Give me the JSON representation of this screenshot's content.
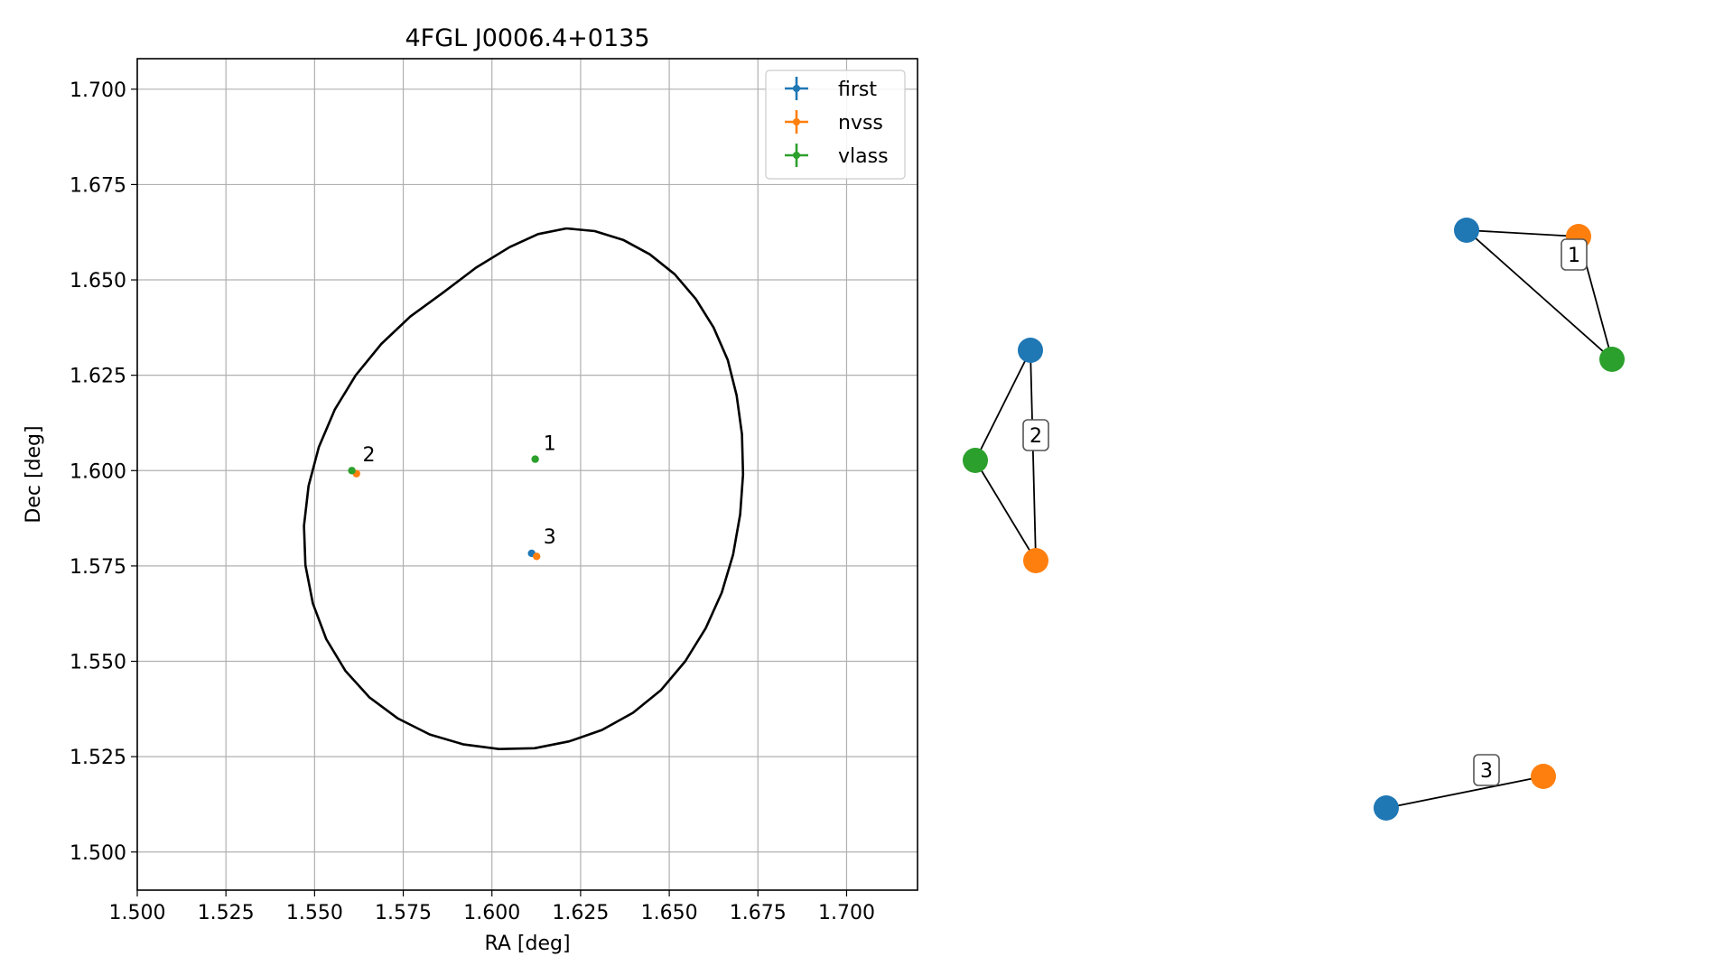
{
  "chart_data": [
    {
      "type": "scatter",
      "title": "4FGL J0006.4+0135",
      "xlabel": "RA [deg]",
      "ylabel": "Dec [deg]",
      "xlim": [
        1.5,
        1.72
      ],
      "ylim": [
        1.49,
        1.708
      ],
      "xticks": [
        "1.500",
        "1.525",
        "1.550",
        "1.575",
        "1.600",
        "1.625",
        "1.650",
        "1.675",
        "1.700"
      ],
      "yticks": [
        "1.500",
        "1.525",
        "1.550",
        "1.575",
        "1.600",
        "1.625",
        "1.650",
        "1.675",
        "1.700"
      ],
      "grid": true,
      "legend_position": "upper right",
      "series": [
        {
          "name": "first",
          "color": "#1f77b4",
          "points": [
            {
              "x": 1.6112,
              "y": 1.5783
            }
          ]
        },
        {
          "name": "nvss",
          "color": "#ff7f0e",
          "points": [
            {
              "x": 1.5618,
              "y": 1.5992
            },
            {
              "x": 1.6126,
              "y": 1.5775
            }
          ]
        },
        {
          "name": "vlass",
          "color": "#2ca02c",
          "points": [
            {
              "x": 1.5605,
              "y": 1.6
            },
            {
              "x": 1.6122,
              "y": 1.603
            }
          ]
        }
      ],
      "annotations": [
        {
          "text": "1",
          "x": 1.6135,
          "y": 1.604
        },
        {
          "text": "2",
          "x": 1.5625,
          "y": 1.601
        },
        {
          "text": "3",
          "x": 1.6135,
          "y": 1.5795
        }
      ],
      "ellipse": {
        "color": "#000000",
        "points": [
          [
            1.621,
            1.6635
          ],
          [
            1.629,
            1.6628
          ],
          [
            1.637,
            1.6605
          ],
          [
            1.6445,
            1.6567
          ],
          [
            1.6515,
            1.6515
          ],
          [
            1.6575,
            1.645
          ],
          [
            1.6625,
            1.6375
          ],
          [
            1.6665,
            1.629
          ],
          [
            1.669,
            1.6197
          ],
          [
            1.6705,
            1.6095
          ],
          [
            1.6708,
            1.599
          ],
          [
            1.67,
            1.5885
          ],
          [
            1.668,
            1.578
          ],
          [
            1.6648,
            1.568
          ],
          [
            1.6603,
            1.5587
          ],
          [
            1.6545,
            1.55
          ],
          [
            1.6477,
            1.5425
          ],
          [
            1.6398,
            1.5365
          ],
          [
            1.631,
            1.532
          ],
          [
            1.6218,
            1.529
          ],
          [
            1.612,
            1.5272
          ],
          [
            1.602,
            1.527
          ],
          [
            1.592,
            1.5282
          ],
          [
            1.5825,
            1.5308
          ],
          [
            1.5735,
            1.535
          ],
          [
            1.5655,
            1.5405
          ],
          [
            1.5587,
            1.5475
          ],
          [
            1.5533,
            1.5558
          ],
          [
            1.5495,
            1.5652
          ],
          [
            1.5474,
            1.5752
          ],
          [
            1.547,
            1.5855
          ],
          [
            1.5483,
            1.596
          ],
          [
            1.5512,
            1.6062
          ],
          [
            1.5557,
            1.616
          ],
          [
            1.5616,
            1.625
          ],
          [
            1.5688,
            1.6332
          ],
          [
            1.577,
            1.6404
          ],
          [
            1.586,
            1.6465
          ],
          [
            1.5955,
            1.6532
          ],
          [
            1.605,
            1.6586
          ],
          [
            1.613,
            1.662
          ],
          [
            1.621,
            1.6635
          ]
        ]
      }
    },
    {
      "type": "network",
      "groups": [
        {
          "label": "1",
          "nodes": [
            "first",
            "nvss",
            "vlass"
          ],
          "edges": [
            [
              "first",
              "nvss"
            ],
            [
              "first",
              "vlass"
            ],
            [
              "nvss",
              "vlass"
            ]
          ]
        },
        {
          "label": "2",
          "nodes": [
            "first",
            "nvss",
            "vlass"
          ],
          "edges": [
            [
              "first",
              "vlass"
            ],
            [
              "first",
              "nvss"
            ],
            [
              "vlass",
              "nvss"
            ]
          ]
        },
        {
          "label": "3",
          "nodes": [
            "first",
            "nvss"
          ],
          "edges": [
            [
              "first",
              "nvss"
            ]
          ]
        }
      ],
      "node_colors": {
        "first": "#1f77b4",
        "nvss": "#ff7f0e",
        "vlass": "#2ca02c"
      }
    }
  ]
}
